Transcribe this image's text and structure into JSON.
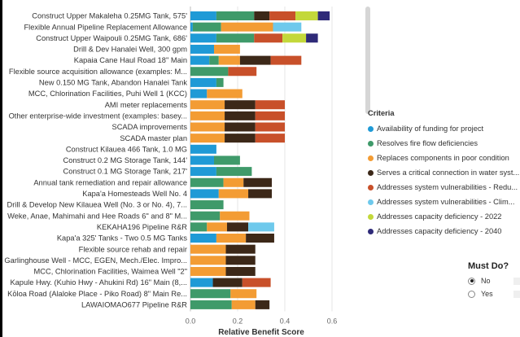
{
  "chart_data": {
    "type": "bar",
    "orientation": "horizontal",
    "stacked": true,
    "xlabel": "Relative Benefit Score",
    "xlim": [
      0,
      0.65
    ],
    "xticks": [
      "0.0",
      "0.2",
      "0.4",
      "0.6"
    ],
    "xtick_values": [
      0,
      0.2,
      0.4,
      0.6
    ],
    "grid": true,
    "categories": [
      "Construct Upper Makaleha 0.25MG Tank, 575'",
      "Flexible Annual Pipeline Replacement Allowance",
      "Construct Upper Waipouli 0.25MG Tank, 686'",
      "Drill & Dev Hanalei Well, 300 gpm",
      "Kapaia Cane Haul Road 18\" Main",
      "Flexible source acquisition allowance (examples: M...",
      "New 0.150 MG Tank, Abandon Hanalei Tank",
      "MCC, Chlorination Facilities, Puhi Well 1 (KCC)",
      "AMI meter replacements",
      "Other enterprise-wide investment (examples: basey...",
      "SCADA improvements",
      "SCADA master plan",
      "Construct Kilauea 466 Tank, 1.0 MG",
      "Construct 0.2 MG Storage Tank, 144'",
      "Construct 0.1 MG Storage Tank, 217'",
      "Annual tank remediation and repair allowance",
      "Kapa'a Homesteads Well No. 4",
      "Drill & Develop New Kilauea Well (No. 3 or No. 4), 7...",
      "Weke, Anae, Mahimahi and Hee Roads 6\" and 8\" M...",
      "KEKAHA196 Pipeline R&R",
      "Kapa'a 325' Tanks - Two 0.5 MG Tanks",
      "Flexible source rehab and repair",
      "Garlinghouse Well - MCC, EGEN, Mech./Elec. Impro...",
      "MCC, Chlorination Facilities, Waimea Well \"2\"",
      "Kapule Hwy. (Kuhio Hwy - Ahukini Rd) 16\" Main (8,...",
      "Kōloa Road (Alaloke Place - Piko Road) 8\" Main Re...",
      "LAWAIOMAO677 Pipeline R&R"
    ],
    "series": [
      {
        "name": "Availability of funding for project",
        "color": "#1f9ad6",
        "values": [
          0.11,
          0.01,
          0.11,
          0.1,
          0.08,
          0.0,
          0.11,
          0.07,
          0.0,
          0.0,
          0.0,
          0.0,
          0.11,
          0.1,
          0.11,
          0.0,
          0.12,
          0.0,
          0.0,
          0.0,
          0.11,
          0.0,
          0.0,
          0.0,
          0.095,
          0.0,
          0.0
        ]
      },
      {
        "name": "Resolves fire flow deficiencies",
        "color": "#3f9a6a",
        "values": [
          0.16,
          0.12,
          0.16,
          0.0,
          0.04,
          0.16,
          0.03,
          0.0,
          0.0,
          0.0,
          0.0,
          0.0,
          0.0,
          0.11,
          0.15,
          0.14,
          0.0,
          0.14,
          0.125,
          0.07,
          0.0,
          0.0,
          0.0,
          0.0,
          0.0,
          0.17,
          0.175
        ]
      },
      {
        "name": "Replaces components in poor condition",
        "color": "#f39c34",
        "values": [
          0.0,
          0.22,
          0.0,
          0.11,
          0.09,
          0.0,
          0.0,
          0.15,
          0.145,
          0.145,
          0.145,
          0.145,
          0.0,
          0.0,
          0.0,
          0.085,
          0.125,
          0.0,
          0.125,
          0.085,
          0.125,
          0.15,
          0.15,
          0.15,
          0.0,
          0.11,
          0.1
        ]
      },
      {
        "name": "Serves a critical connection in water syst...",
        "color": "#3c2818",
        "values": [
          0.065,
          0.0,
          0.0,
          0.0,
          0.13,
          0.0,
          0.0,
          0.0,
          0.13,
          0.13,
          0.13,
          0.13,
          0.0,
          0.0,
          0.0,
          0.12,
          0.1,
          0.0,
          0.0,
          0.09,
          0.12,
          0.125,
          0.125,
          0.125,
          0.125,
          0.0,
          0.06
        ]
      },
      {
        "name": "Addresses system vulnerabilities - Redu...",
        "color": "#c8502a",
        "values": [
          0.11,
          0.0,
          0.12,
          0.0,
          0.13,
          0.12,
          0.0,
          0.0,
          0.125,
          0.125,
          0.125,
          0.125,
          0.0,
          0.0,
          0.0,
          0.0,
          0.0,
          0.0,
          0.0,
          0.0,
          0.0,
          0.0,
          0.0,
          0.0,
          0.12,
          0.0,
          0.0
        ]
      },
      {
        "name": "Addresses system vulnerabilities - Clim...",
        "color": "#6ec9ec",
        "values": [
          0.0,
          0.12,
          0.0,
          0.0,
          0.0,
          0.0,
          0.0,
          0.0,
          0.0,
          0.0,
          0.0,
          0.0,
          0.0,
          0.0,
          0.0,
          0.0,
          0.0,
          0.0,
          0.0,
          0.11,
          0.0,
          0.0,
          0.0,
          0.0,
          0.0,
          0.0,
          0.0
        ]
      },
      {
        "name": "Addresses capacity deficiency - 2022",
        "color": "#c3d83a",
        "values": [
          0.095,
          0.0,
          0.1,
          0.0,
          0.0,
          0.0,
          0.0,
          0.0,
          0.0,
          0.0,
          0.0,
          0.0,
          0.0,
          0.0,
          0.0,
          0.0,
          0.0,
          0.0,
          0.0,
          0.0,
          0.0,
          0.0,
          0.0,
          0.0,
          0.0,
          0.0,
          0.0
        ]
      },
      {
        "name": "Addresses capacity deficiency - 2040",
        "color": "#2e2a78",
        "values": [
          0.05,
          0.0,
          0.05,
          0.0,
          0.0,
          0.0,
          0.0,
          0.0,
          0.0,
          0.0,
          0.0,
          0.0,
          0.0,
          0.0,
          0.0,
          0.0,
          0.0,
          0.0,
          0.0,
          0.0,
          0.0,
          0.0,
          0.0,
          0.0,
          0.0,
          0.0,
          0.0
        ]
      }
    ]
  },
  "legend": {
    "title": "Criteria",
    "items": [
      {
        "label": "Availability of funding for project",
        "color": "#1f9ad6"
      },
      {
        "label": "Resolves fire flow deficiencies",
        "color": "#3f9a6a"
      },
      {
        "label": "Replaces components in poor condition",
        "color": "#f39c34"
      },
      {
        "label": "Serves a critical connection in water syst...",
        "color": "#3c2818"
      },
      {
        "label": "Addresses system vulnerabilities - Redu...",
        "color": "#c8502a"
      },
      {
        "label": "Addresses system vulnerabilities - Clim...",
        "color": "#6ec9ec"
      },
      {
        "label": "Addresses capacity deficiency - 2022",
        "color": "#c3d83a"
      },
      {
        "label": "Addresses capacity deficiency - 2040",
        "color": "#2e2a78"
      }
    ]
  },
  "filter": {
    "title": "Must Do?",
    "options": [
      {
        "label": "No",
        "selected": true
      },
      {
        "label": "Yes",
        "selected": false
      }
    ]
  }
}
